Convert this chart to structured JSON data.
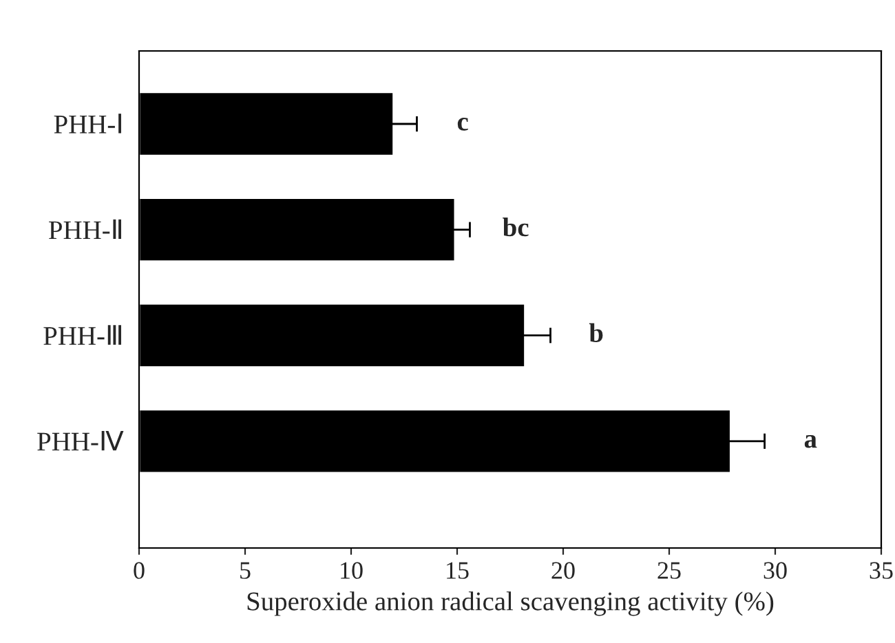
{
  "chart_data": {
    "type": "bar",
    "orientation": "horizontal",
    "xlabel": "Superoxide anion radical scavenging activity (%)",
    "categories": [
      "PHH-Ⅰ",
      "PHH-Ⅱ",
      "PHH-Ⅲ",
      "PHH-Ⅳ"
    ],
    "values": [
      12.0,
      14.9,
      18.2,
      27.9
    ],
    "color": "#000000",
    "errors": [
      1.1,
      0.7,
      1.2,
      1.6
    ],
    "xlim": [
      0,
      35
    ],
    "xticks": [
      0,
      5,
      10,
      15,
      20,
      25,
      30,
      35
    ],
    "annotations": [
      "c",
      "bc",
      "b",
      "a"
    ]
  }
}
